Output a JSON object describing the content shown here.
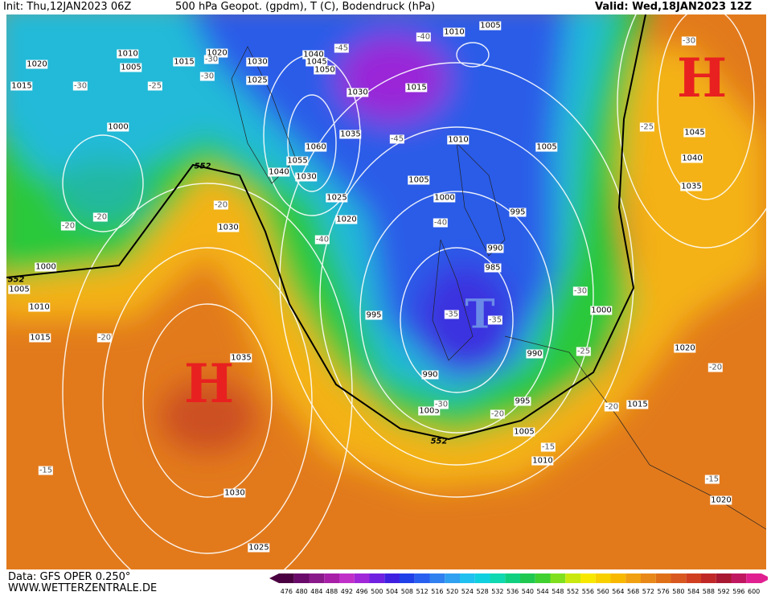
{
  "header": {
    "init": "Init: Thu,12JAN2023 06Z",
    "title": "500 hPa Geopot. (gpdm), T (C), Bodendruck (hPa)",
    "valid": "Valid: Wed,18JAN2023 12Z"
  },
  "footer": {
    "data": "Data: GFS OPER 0.250°",
    "url": "WWW.WETTERZENTRALE.DE"
  },
  "color_scale": {
    "values": [
      476,
      480,
      484,
      488,
      492,
      496,
      500,
      504,
      508,
      512,
      516,
      520,
      524,
      528,
      532,
      536,
      540,
      544,
      548,
      552,
      556,
      560,
      564,
      568,
      572,
      576,
      580,
      584,
      588,
      592,
      596,
      600
    ],
    "colors": [
      "#4a0040",
      "#6a0a6a",
      "#8a1a8a",
      "#a820a8",
      "#c030c8",
      "#a028d8",
      "#7020e0",
      "#4020e0",
      "#2040e8",
      "#2a60f0",
      "#3080f0",
      "#30a0f0",
      "#20c0f0",
      "#10d0e0",
      "#10d8b0",
      "#10d080",
      "#20c850",
      "#40d030",
      "#80e020",
      "#c8e810",
      "#f8e800",
      "#f8d000",
      "#f8b800",
      "#f0a010",
      "#e88818",
      "#e07018",
      "#d85820",
      "#d04020",
      "#c02828",
      "#a81830",
      "#c01860",
      "#e02090"
    ]
  },
  "pressure_labels": [
    "1010",
    "1005",
    "1020",
    "1015",
    "1015",
    "1020",
    "1030",
    "1025",
    "1040",
    "1045",
    "1050",
    "1030",
    "1010",
    "1005",
    "1015",
    "1000",
    "1035",
    "1060",
    "1055",
    "1040",
    "1030",
    "1010",
    "1005",
    "1045",
    "1040",
    "1035",
    "1005",
    "1025",
    "1020",
    "1000",
    "995",
    "1030",
    "990",
    "985",
    "1000",
    "1005",
    "1010",
    "1000",
    "995",
    "1015",
    "1035",
    "990",
    "1020",
    "990",
    "1005",
    "995",
    "1015",
    "1005",
    "1010",
    "1030",
    "1020",
    "1025"
  ],
  "temperature_labels": [
    "-45",
    "-40",
    "-30",
    "-30",
    "-25",
    "-30",
    "-30",
    "-45",
    "-25",
    "-20",
    "-20",
    "-20",
    "-40",
    "-40",
    "-30",
    "-35",
    "-35",
    "-20",
    "-25",
    "-20",
    "-30",
    "-20",
    "-20",
    "-15",
    "-15",
    "-15"
  ],
  "contour_labels": [
    "552",
    "552",
    "552"
  ],
  "symbols": [
    "H",
    "H",
    "T"
  ]
}
